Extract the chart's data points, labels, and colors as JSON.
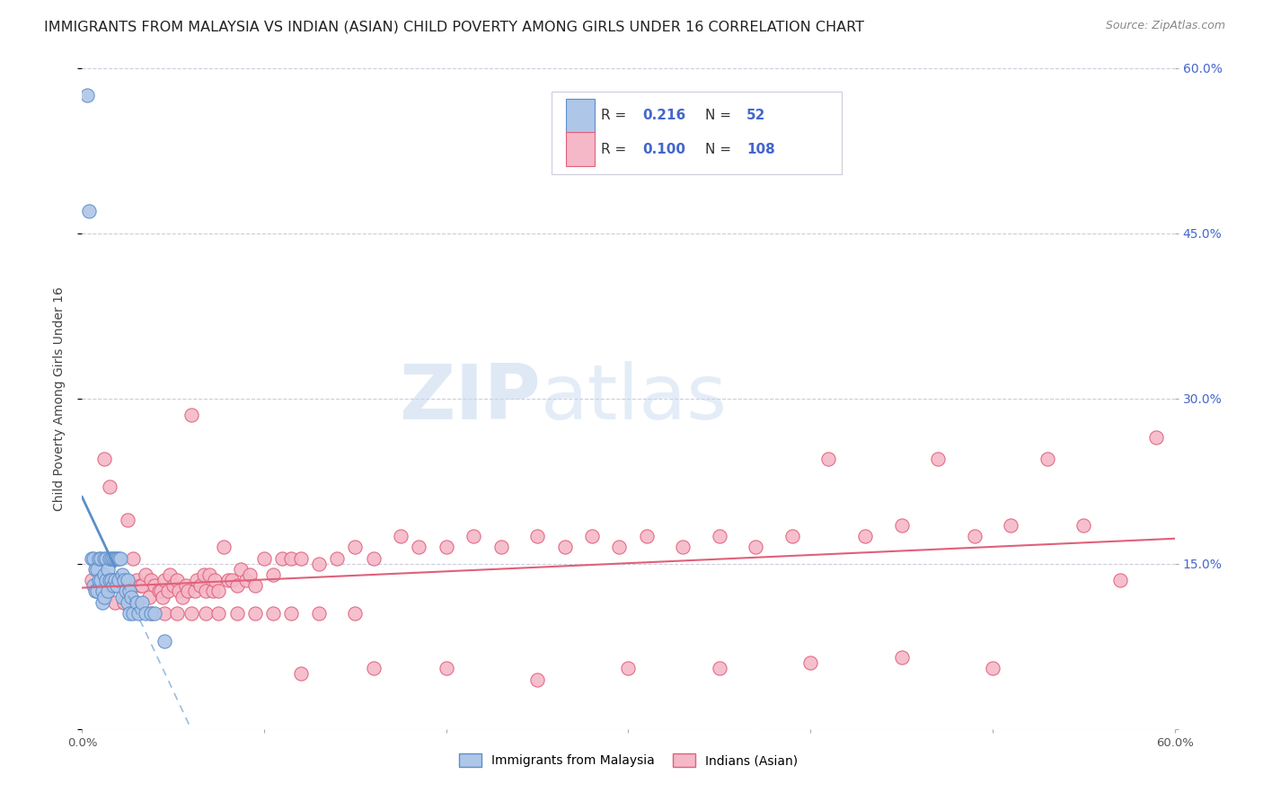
{
  "title": "IMMIGRANTS FROM MALAYSIA VS INDIAN (ASIAN) CHILD POVERTY AMONG GIRLS UNDER 16 CORRELATION CHART",
  "source": "Source: ZipAtlas.com",
  "ylabel": "Child Poverty Among Girls Under 16",
  "xlim": [
    0.0,
    0.6
  ],
  "ylim": [
    0.0,
    0.6
  ],
  "x_ticks": [
    0.0,
    0.1,
    0.2,
    0.3,
    0.4,
    0.5,
    0.6
  ],
  "y_ticks": [
    0.0,
    0.15,
    0.3,
    0.45,
    0.6
  ],
  "watermark_zip": "ZIP",
  "watermark_atlas": "atlas",
  "malaysia_color": "#aec6e8",
  "malaysia_edge": "#5b8fc9",
  "india_color": "#f5b8c8",
  "india_edge": "#e0607a",
  "trendline_malaysia_color": "#5b8fc9",
  "trendline_india_color": "#e0607a",
  "background_color": "#ffffff",
  "grid_color": "#ccccdd",
  "title_fontsize": 11.5,
  "axis_fontsize": 9.5,
  "right_tick_color": "#4466cc",
  "malaysia_scatter_x": [
    0.003,
    0.004,
    0.005,
    0.006,
    0.006,
    0.007,
    0.007,
    0.008,
    0.008,
    0.009,
    0.009,
    0.01,
    0.01,
    0.011,
    0.011,
    0.012,
    0.012,
    0.012,
    0.013,
    0.013,
    0.014,
    0.014,
    0.015,
    0.015,
    0.016,
    0.016,
    0.017,
    0.017,
    0.018,
    0.018,
    0.019,
    0.019,
    0.02,
    0.02,
    0.021,
    0.022,
    0.022,
    0.023,
    0.024,
    0.025,
    0.025,
    0.026,
    0.026,
    0.027,
    0.028,
    0.03,
    0.031,
    0.033,
    0.035,
    0.038,
    0.04,
    0.045
  ],
  "malaysia_scatter_y": [
    0.575,
    0.47,
    0.155,
    0.155,
    0.13,
    0.145,
    0.125,
    0.145,
    0.125,
    0.155,
    0.135,
    0.155,
    0.135,
    0.125,
    0.115,
    0.155,
    0.14,
    0.12,
    0.155,
    0.135,
    0.145,
    0.125,
    0.155,
    0.135,
    0.155,
    0.135,
    0.155,
    0.13,
    0.155,
    0.135,
    0.155,
    0.13,
    0.155,
    0.135,
    0.155,
    0.14,
    0.12,
    0.135,
    0.125,
    0.135,
    0.115,
    0.125,
    0.105,
    0.12,
    0.105,
    0.115,
    0.105,
    0.115,
    0.105,
    0.105,
    0.105,
    0.08
  ],
  "india_scatter_x": [
    0.005,
    0.01,
    0.012,
    0.015,
    0.017,
    0.018,
    0.02,
    0.022,
    0.023,
    0.025,
    0.027,
    0.028,
    0.03,
    0.032,
    0.033,
    0.035,
    0.037,
    0.038,
    0.04,
    0.042,
    0.043,
    0.044,
    0.045,
    0.047,
    0.048,
    0.05,
    0.052,
    0.053,
    0.055,
    0.057,
    0.058,
    0.06,
    0.062,
    0.063,
    0.065,
    0.067,
    0.068,
    0.07,
    0.072,
    0.073,
    0.075,
    0.078,
    0.08,
    0.082,
    0.085,
    0.087,
    0.09,
    0.092,
    0.095,
    0.1,
    0.105,
    0.11,
    0.115,
    0.12,
    0.13,
    0.14,
    0.15,
    0.16,
    0.175,
    0.185,
    0.2,
    0.215,
    0.23,
    0.25,
    0.265,
    0.28,
    0.295,
    0.31,
    0.33,
    0.35,
    0.37,
    0.39,
    0.41,
    0.43,
    0.45,
    0.47,
    0.49,
    0.51,
    0.53,
    0.55,
    0.57,
    0.59,
    0.12,
    0.16,
    0.2,
    0.25,
    0.3,
    0.35,
    0.4,
    0.45,
    0.5,
    0.013,
    0.018,
    0.023,
    0.03,
    0.038,
    0.045,
    0.052,
    0.06,
    0.068,
    0.075,
    0.085,
    0.095,
    0.105,
    0.115,
    0.13,
    0.15
  ],
  "india_scatter_y": [
    0.135,
    0.13,
    0.245,
    0.22,
    0.135,
    0.135,
    0.135,
    0.135,
    0.115,
    0.19,
    0.13,
    0.155,
    0.135,
    0.13,
    0.13,
    0.14,
    0.12,
    0.135,
    0.13,
    0.125,
    0.125,
    0.12,
    0.135,
    0.125,
    0.14,
    0.13,
    0.135,
    0.125,
    0.12,
    0.13,
    0.125,
    0.285,
    0.125,
    0.135,
    0.13,
    0.14,
    0.125,
    0.14,
    0.125,
    0.135,
    0.125,
    0.165,
    0.135,
    0.135,
    0.13,
    0.145,
    0.135,
    0.14,
    0.13,
    0.155,
    0.14,
    0.155,
    0.155,
    0.155,
    0.15,
    0.155,
    0.165,
    0.155,
    0.175,
    0.165,
    0.165,
    0.175,
    0.165,
    0.175,
    0.165,
    0.175,
    0.165,
    0.175,
    0.165,
    0.175,
    0.165,
    0.175,
    0.245,
    0.175,
    0.185,
    0.245,
    0.175,
    0.185,
    0.245,
    0.185,
    0.135,
    0.265,
    0.05,
    0.055,
    0.055,
    0.045,
    0.055,
    0.055,
    0.06,
    0.065,
    0.055,
    0.12,
    0.115,
    0.115,
    0.115,
    0.105,
    0.105,
    0.105,
    0.105,
    0.105,
    0.105,
    0.105,
    0.105,
    0.105,
    0.105,
    0.105,
    0.105
  ]
}
